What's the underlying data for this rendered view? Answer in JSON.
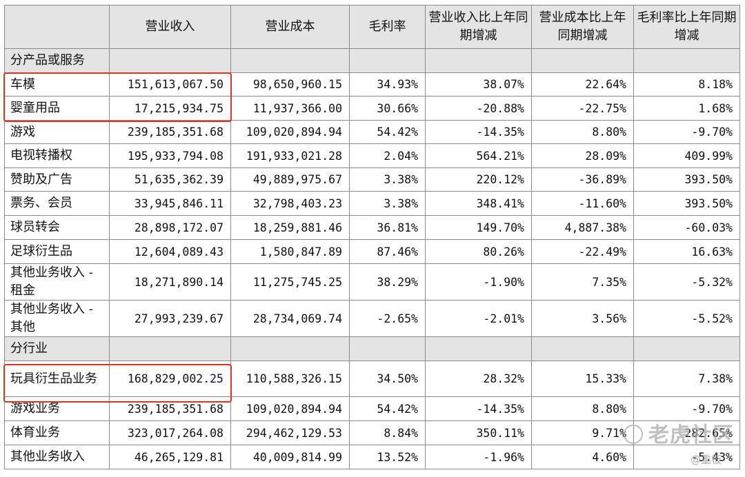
{
  "headers": [
    "",
    "营业收入",
    "营业成本",
    "毛利率",
    "营业收入比上年同期增减",
    "营业成本比上年同期增减",
    "毛利率比上年同期增减"
  ],
  "sections": [
    {
      "title": "分产品或服务",
      "rows": [
        {
          "label": "车模",
          "values": [
            "151,613,067.50",
            "98,650,960.15",
            "34.93%",
            "38.07%",
            "22.64%",
            "8.18%"
          ]
        },
        {
          "label": "婴童用品",
          "values": [
            "17,215,934.75",
            "11,937,366.00",
            "30.66%",
            "-20.88%",
            "-22.75%",
            "1.68%"
          ]
        },
        {
          "label": "游戏",
          "values": [
            "239,185,351.68",
            "109,020,894.94",
            "54.42%",
            "-14.35%",
            "8.80%",
            "-9.70%"
          ]
        },
        {
          "label": "电视转播权",
          "values": [
            "195,933,794.08",
            "191,933,021.28",
            "2.04%",
            "564.21%",
            "28.09%",
            "409.99%"
          ]
        },
        {
          "label": "赞助及广告",
          "values": [
            "51,635,362.39",
            "49,889,975.67",
            "3.38%",
            "220.12%",
            "-36.89%",
            "393.50%"
          ]
        },
        {
          "label": "票务、会员",
          "values": [
            "33,945,846.11",
            "32,798,403.23",
            "3.38%",
            "348.41%",
            "-11.60%",
            "393.50%"
          ]
        },
        {
          "label": "球员转会",
          "values": [
            "28,898,172.07",
            "18,259,881.46",
            "36.81%",
            "149.70%",
            "4,887.38%",
            "-60.03%"
          ]
        },
        {
          "label": "足球衍生品",
          "values": [
            "12,604,089.43",
            "1,580,847.89",
            "87.46%",
            "80.26%",
            "-22.49%",
            "16.63%"
          ]
        },
        {
          "label": "其他业务收入 - 租金",
          "values": [
            "18,271,890.14",
            "11,275,745.25",
            "38.29%",
            "-1.90%",
            "7.35%",
            "-5.32%"
          ]
        },
        {
          "label": "其他业务收入 - 其他",
          "values": [
            "27,993,239.67",
            "28,734,069.74",
            "-2.65%",
            "-2.01%",
            "3.56%",
            "-5.52%"
          ]
        }
      ]
    },
    {
      "title": "分行业",
      "rows": [
        {
          "label": "玩具衍生品业务",
          "values": [
            "168,829,002.25",
            "110,588,326.15",
            "34.50%",
            "28.32%",
            "15.33%",
            "7.38%"
          ]
        },
        {
          "label": "游戏业务",
          "values": [
            "239,185,351.68",
            "109,020,894.94",
            "54.42%",
            "-14.35%",
            "8.80%",
            "-9.70%"
          ]
        },
        {
          "label": "体育业务",
          "values": [
            "323,017,264.08",
            "294,462,129.53",
            "8.84%",
            "350.11%",
            "9.71%",
            "282.65%"
          ]
        },
        {
          "label": "其他业务收入",
          "values": [
            "46,265,129.81",
            "40,009,814.99",
            "13.52%",
            "-1.96%",
            "4.60%",
            "-5.43%"
          ]
        }
      ]
    }
  ],
  "watermark": {
    "main": "老虎社区",
    "sub": "@重板"
  },
  "colors": {
    "header_bg": "#e4e4e4",
    "highlight_border": "#e0331e",
    "grid": "#8a8a8a"
  }
}
